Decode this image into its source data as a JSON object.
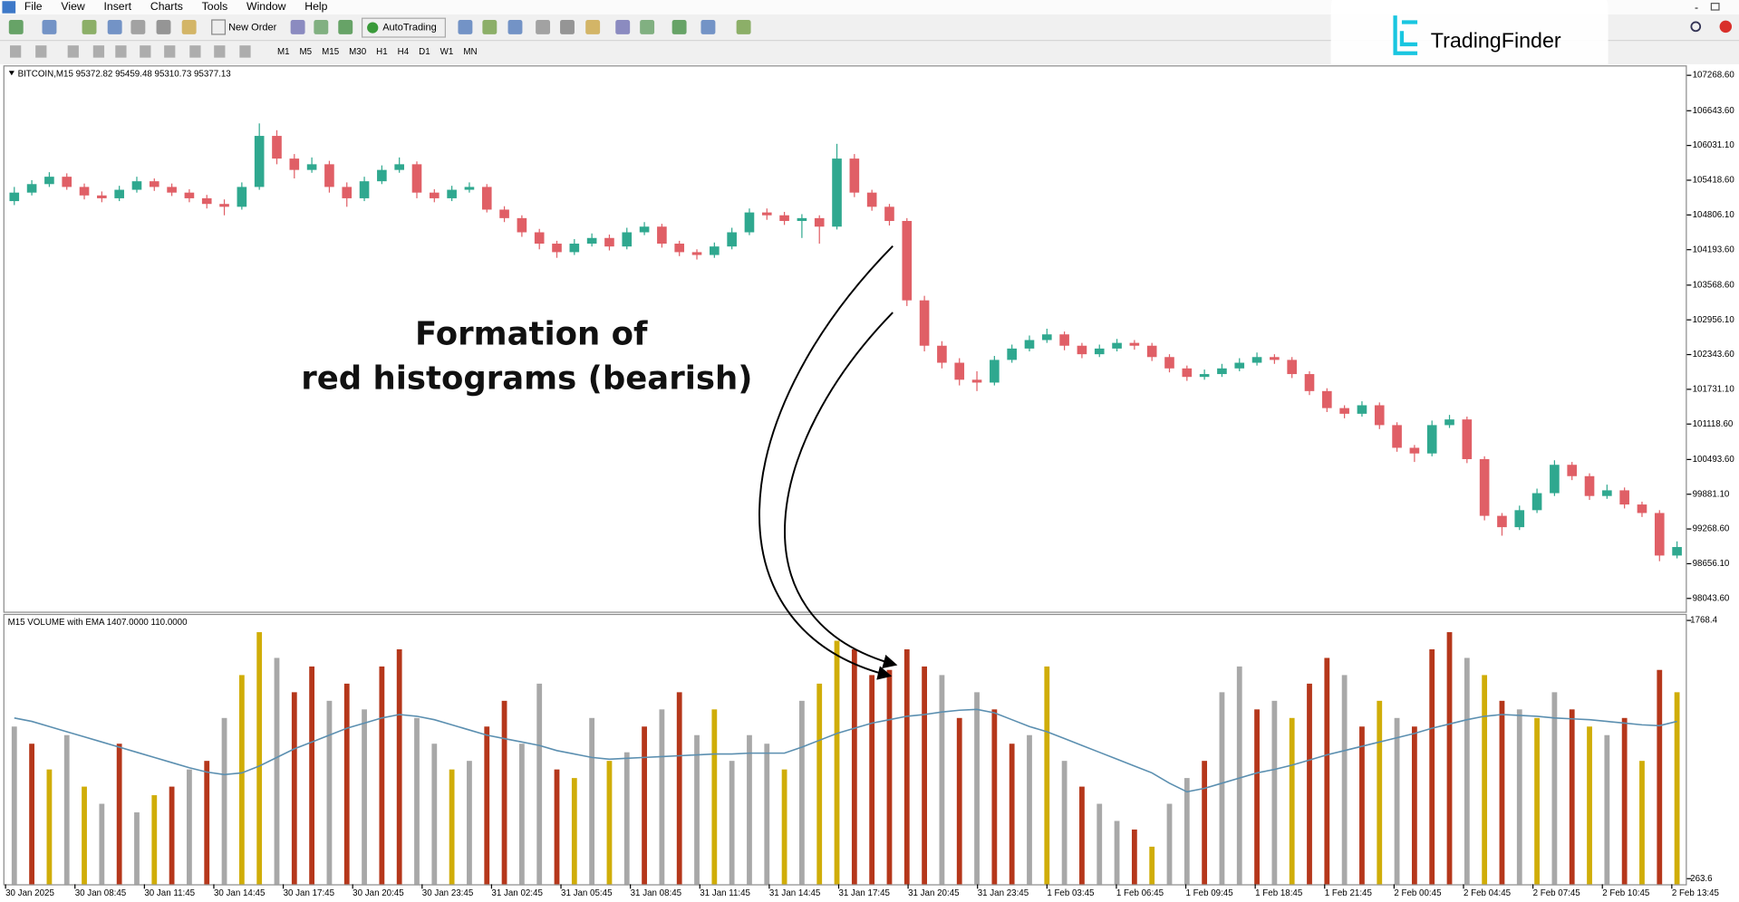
{
  "menu": [
    "File",
    "View",
    "Insert",
    "Charts",
    "Tools",
    "Window",
    "Help"
  ],
  "toolbar": {
    "new_order": "New Order",
    "autotrading": "AutoTrading",
    "timeframes": [
      "M1",
      "M5",
      "M15",
      "M30",
      "H1",
      "H4",
      "D1",
      "W1",
      "MN"
    ]
  },
  "logo": "TradingFinder",
  "annotation": [
    "Formation of",
    "red histograms (bearish)"
  ],
  "chart_data": [
    {
      "type": "candlestick",
      "title": "BITCOIN,M15  95372.82 95459.48 95310.73 95377.13",
      "up_color": "#2fa88f",
      "down_color": "#e05f66",
      "ylim": [
        97810,
        107424
      ],
      "yticks": [
        {
          "value": 107268.6,
          "label": "107268.60"
        },
        {
          "value": 106643.6,
          "label": "106643.60"
        },
        {
          "value": 106031.1,
          "label": "106031.10"
        },
        {
          "value": 105418.6,
          "label": "105418.60"
        },
        {
          "value": 104806.1,
          "label": "104806.10"
        },
        {
          "value": 104193.6,
          "label": "104193.60"
        },
        {
          "value": 103568.6,
          "label": "103568.60"
        },
        {
          "value": 102956.1,
          "label": "102956.10"
        },
        {
          "value": 102343.6,
          "label": "102343.60"
        },
        {
          "value": 101731.1,
          "label": "101731.10"
        },
        {
          "value": 101118.6,
          "label": "101118.60"
        },
        {
          "value": 100493.6,
          "label": "100493.60"
        },
        {
          "value": 99881.1,
          "label": "99881.10"
        },
        {
          "value": 99268.6,
          "label": "99268.60"
        },
        {
          "value": 98656.1,
          "label": "98656.10"
        },
        {
          "value": 98043.6,
          "label": "98043.60"
        }
      ],
      "candles": [
        [
          105050,
          105300,
          104980,
          105200
        ],
        [
          105200,
          105420,
          105150,
          105350
        ],
        [
          105350,
          105560,
          105300,
          105480
        ],
        [
          105480,
          105540,
          105250,
          105300
        ],
        [
          105300,
          105360,
          105080,
          105150
        ],
        [
          105150,
          105220,
          105030,
          105100
        ],
        [
          105100,
          105320,
          105050,
          105250
        ],
        [
          105250,
          105480,
          105200,
          105400
        ],
        [
          105400,
          105450,
          105230,
          105300
        ],
        [
          105300,
          105360,
          105140,
          105200
        ],
        [
          105200,
          105260,
          105030,
          105100
        ],
        [
          105100,
          105160,
          104920,
          105000
        ],
        [
          105000,
          105080,
          104800,
          104950
        ],
        [
          104950,
          105380,
          104900,
          105300
        ],
        [
          105300,
          106420,
          105250,
          106200
        ],
        [
          106200,
          106300,
          105700,
          105800
        ],
        [
          105800,
          105880,
          105450,
          105600
        ],
        [
          105600,
          105820,
          105550,
          105700
        ],
        [
          105700,
          105760,
          105200,
          105300
        ],
        [
          105300,
          105380,
          104950,
          105100
        ],
        [
          105100,
          105480,
          105050,
          105400
        ],
        [
          105400,
          105680,
          105350,
          105600
        ],
        [
          105600,
          105820,
          105550,
          105700
        ],
        [
          105700,
          105750,
          105100,
          105200
        ],
        [
          105200,
          105260,
          105030,
          105100
        ],
        [
          105100,
          105320,
          105050,
          105250
        ],
        [
          105250,
          105380,
          105200,
          105300
        ],
        [
          105300,
          105350,
          104850,
          104900
        ],
        [
          104900,
          104960,
          104680,
          104750
        ],
        [
          104750,
          104800,
          104420,
          104500
        ],
        [
          104500,
          104560,
          104200,
          104300
        ],
        [
          104300,
          104350,
          104050,
          104150
        ],
        [
          104150,
          104380,
          104100,
          104300
        ],
        [
          104300,
          104480,
          104250,
          104400
        ],
        [
          104400,
          104460,
          104180,
          104250
        ],
        [
          104250,
          104580,
          104200,
          104500
        ],
        [
          104500,
          104680,
          104450,
          104600
        ],
        [
          104600,
          104650,
          104230,
          104300
        ],
        [
          104300,
          104350,
          104080,
          104150
        ],
        [
          104150,
          104200,
          104020,
          104100
        ],
        [
          104100,
          104320,
          104050,
          104250
        ],
        [
          104250,
          104580,
          104200,
          104500
        ],
        [
          104500,
          104920,
          104450,
          104850
        ],
        [
          104850,
          104920,
          104720,
          104800
        ],
        [
          104800,
          104860,
          104630,
          104700
        ],
        [
          104700,
          104820,
          104400,
          104750
        ],
        [
          104750,
          104800,
          104300,
          104600
        ],
        [
          104600,
          106060,
          104550,
          105800
        ],
        [
          105800,
          105880,
          105120,
          105200
        ],
        [
          105200,
          105250,
          104880,
          104950
        ],
        [
          104950,
          105000,
          104620,
          104700
        ],
        [
          104700,
          104750,
          103200,
          103300
        ],
        [
          103300,
          103380,
          102400,
          102500
        ],
        [
          102500,
          102580,
          102100,
          102200
        ],
        [
          102200,
          102280,
          101800,
          101900
        ],
        [
          101900,
          102050,
          101700,
          101850
        ],
        [
          101850,
          102320,
          101800,
          102250
        ],
        [
          102250,
          102520,
          102200,
          102450
        ],
        [
          102450,
          102680,
          102400,
          102600
        ],
        [
          102600,
          102800,
          102550,
          102700
        ],
        [
          102700,
          102750,
          102420,
          102500
        ],
        [
          102500,
          102550,
          102280,
          102350
        ],
        [
          102350,
          102520,
          102300,
          102450
        ],
        [
          102450,
          102620,
          102400,
          102550
        ],
        [
          102550,
          102600,
          102430,
          102500
        ],
        [
          102500,
          102550,
          102230,
          102300
        ],
        [
          102300,
          102350,
          102030,
          102100
        ],
        [
          102100,
          102150,
          101880,
          101950
        ],
        [
          101950,
          102080,
          101900,
          102000
        ],
        [
          102000,
          102180,
          101950,
          102100
        ],
        [
          102100,
          102280,
          102050,
          102200
        ],
        [
          102200,
          102380,
          102150,
          102300
        ],
        [
          102300,
          102350,
          102180,
          102250
        ],
        [
          102250,
          102300,
          101930,
          102000
        ],
        [
          102000,
          102050,
          101630,
          101700
        ],
        [
          101700,
          101750,
          101330,
          101400
        ],
        [
          101400,
          101450,
          101220,
          101300
        ],
        [
          101300,
          101520,
          101250,
          101450
        ],
        [
          101450,
          101500,
          101030,
          101100
        ],
        [
          101100,
          101150,
          100630,
          100700
        ],
        [
          100700,
          100750,
          100450,
          100600
        ],
        [
          100600,
          101180,
          100550,
          101100
        ],
        [
          101100,
          101280,
          101050,
          101200
        ],
        [
          101200,
          101250,
          100430,
          100500
        ],
        [
          100500,
          100550,
          99420,
          99500
        ],
        [
          99500,
          99550,
          99150,
          99300
        ],
        [
          99300,
          99680,
          99250,
          99600
        ],
        [
          99600,
          99980,
          99550,
          99900
        ],
        [
          99900,
          100480,
          99850,
          100400
        ],
        [
          100400,
          100450,
          100130,
          100200
        ],
        [
          100200,
          100250,
          99780,
          99850
        ],
        [
          99850,
          100050,
          99800,
          99950
        ],
        [
          99950,
          100000,
          99630,
          99700
        ],
        [
          99700,
          99750,
          99480,
          99550
        ],
        [
          99550,
          99600,
          98700,
          98800
        ],
        [
          98800,
          99050,
          98750,
          98950
        ]
      ]
    },
    {
      "type": "bar",
      "title": "M15 VOLUME with EMA 1407.0000 110.0000",
      "ylim": [
        231,
        1800
      ],
      "yticks": [
        263.6,
        1768.4
      ],
      "values": [
        1150,
        1050,
        900,
        1100,
        800,
        700,
        1050,
        650,
        750,
        800,
        900,
        950,
        1200,
        1450,
        1700,
        1550,
        1350,
        1500,
        1300,
        1400,
        1250,
        1500,
        1600,
        1200,
        1050,
        900,
        950,
        1150,
        1300,
        1050,
        1400,
        900,
        850,
        1200,
        950,
        1000,
        1150,
        1250,
        1350,
        1100,
        1250,
        950,
        1100,
        1050,
        900,
        1300,
        1400,
        1650,
        1600,
        1450,
        1480,
        1600,
        1500,
        1450,
        1200,
        1350,
        1250,
        1050,
        1100,
        1500,
        950,
        800,
        700,
        600,
        550,
        450,
        700,
        850,
        950,
        1350,
        1500,
        1250,
        1300,
        1200,
        1400,
        1550,
        1450,
        1150,
        1300,
        1200,
        1150,
        1600,
        1700,
        1550,
        1450,
        1300,
        1250,
        1200,
        1350,
        1250,
        1150,
        1100,
        1200,
        950,
        1480,
        1350
      ],
      "bar_colors": [
        "#a8a8a8",
        "#b5371b",
        "#d0ad08",
        "#a8a8a8",
        "#d0ad08",
        "#a8a8a8",
        "#b5371b",
        "#a8a8a8",
        "#d0ad08",
        "#b5371b",
        "#a8a8a8",
        "#b5371b",
        "#a8a8a8",
        "#d0ad08",
        "#d0ad08",
        "#a8a8a8",
        "#b5371b",
        "#b5371b",
        "#a8a8a8",
        "#b5371b",
        "#a8a8a8",
        "#b5371b",
        "#b5371b",
        "#a8a8a8",
        "#a8a8a8",
        "#d0ad08",
        "#a8a8a8",
        "#b5371b",
        "#b5371b",
        "#a8a8a8",
        "#a8a8a8",
        "#b5371b",
        "#d0ad08",
        "#a8a8a8",
        "#d0ad08",
        "#a8a8a8",
        "#b5371b",
        "#a8a8a8",
        "#b5371b",
        "#a8a8a8",
        "#d0ad08",
        "#a8a8a8",
        "#a8a8a8",
        "#a8a8a8",
        "#d0ad08",
        "#a8a8a8",
        "#d0ad08",
        "#d0ad08",
        "#b5371b",
        "#b5371b",
        "#b5371b",
        "#b5371b",
        "#b5371b",
        "#a8a8a8",
        "#b5371b",
        "#a8a8a8",
        "#b5371b",
        "#b5371b",
        "#a8a8a8",
        "#d0ad08",
        "#a8a8a8",
        "#b5371b",
        "#a8a8a8",
        "#a8a8a8",
        "#b5371b",
        "#d0ad08",
        "#a8a8a8",
        "#a8a8a8",
        "#b5371b",
        "#a8a8a8",
        "#a8a8a8",
        "#b5371b",
        "#a8a8a8",
        "#d0ad08",
        "#b5371b",
        "#b5371b",
        "#a8a8a8",
        "#b5371b",
        "#d0ad08",
        "#a8a8a8",
        "#b5371b",
        "#b5371b",
        "#b5371b",
        "#a8a8a8",
        "#d0ad08",
        "#b5371b",
        "#a8a8a8",
        "#d0ad08",
        "#a8a8a8",
        "#b5371b",
        "#d0ad08",
        "#a8a8a8",
        "#b5371b",
        "#d0ad08",
        "#b5371b",
        "#d0ad08"
      ],
      "ema": {
        "color": "#5b8fb0",
        "values": [
          1200,
          1180,
          1150,
          1120,
          1090,
          1060,
          1030,
          1000,
          970,
          940,
          910,
          885,
          870,
          880,
          920,
          970,
          1020,
          1060,
          1100,
          1140,
          1170,
          1200,
          1220,
          1210,
          1190,
          1160,
          1130,
          1100,
          1080,
          1060,
          1040,
          1010,
          990,
          970,
          960,
          965,
          970,
          975,
          980,
          985,
          990,
          990,
          995,
          995,
          995,
          1030,
          1070,
          1110,
          1140,
          1170,
          1190,
          1210,
          1220,
          1235,
          1245,
          1250,
          1230,
          1190,
          1150,
          1120,
          1080,
          1040,
          1000,
          960,
          920,
          880,
          820,
          770,
          790,
          820,
          850,
          880,
          900,
          925,
          955,
          985,
          1010,
          1035,
          1060,
          1085,
          1110,
          1140,
          1165,
          1190,
          1210,
          1220,
          1215,
          1210,
          1200,
          1195,
          1190,
          1180,
          1170,
          1160,
          1155,
          1180
        ]
      },
      "x_axis_labels": [
        "30 Jan 2025",
        "30 Jan 08:45",
        "30 Jan 11:45",
        "30 Jan 14:45",
        "30 Jan 17:45",
        "30 Jan 20:45",
        "30 Jan 23:45",
        "31 Jan 02:45",
        "31 Jan 05:45",
        "31 Jan 08:45",
        "31 Jan 11:45",
        "31 Jan 14:45",
        "31 Jan 17:45",
        "31 Jan 20:45",
        "31 Jan 23:45",
        "1 Feb 03:45",
        "1 Feb 06:45",
        "1 Feb 09:45",
        "1 Feb 18:45",
        "1 Feb 21:45",
        "2 Feb 00:45",
        "2 Feb 04:45",
        "2 Feb 07:45",
        "2 Feb 10:45",
        "2 Feb 13:45"
      ]
    }
  ]
}
